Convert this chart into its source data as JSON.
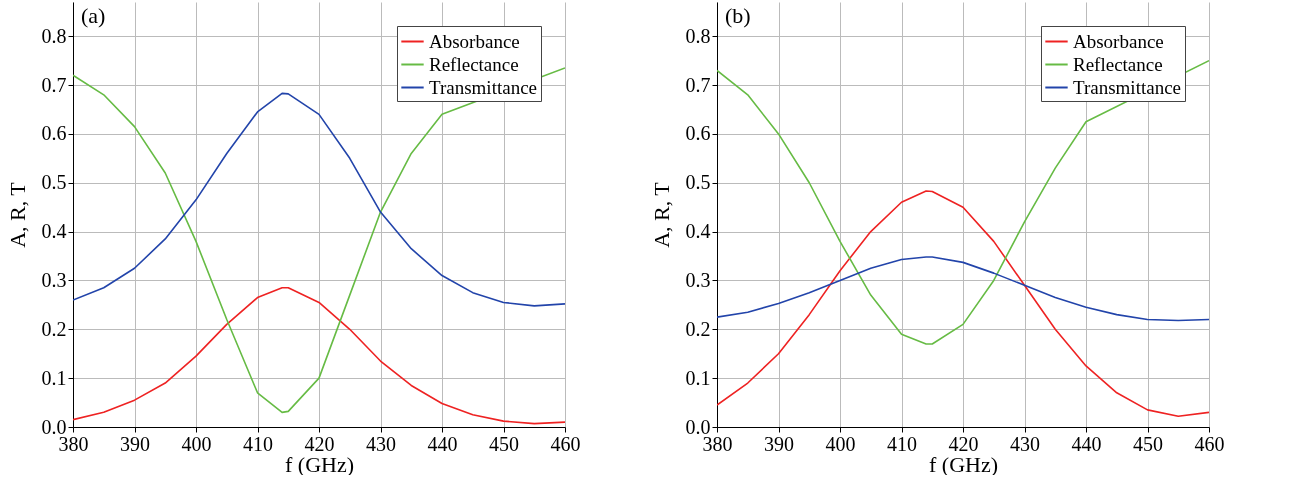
{
  "chart_data": [
    {
      "type": "line",
      "annotations": [
        "(a)"
      ],
      "xlabel": "f (GHz)",
      "ylabel": "A, R, T",
      "x": [
        380,
        385,
        390,
        395,
        400,
        405,
        410,
        414,
        415,
        420,
        425,
        430,
        435,
        440,
        445,
        450,
        455,
        460
      ],
      "xlim": [
        380,
        460
      ],
      "xticks": [
        380,
        390,
        400,
        410,
        420,
        430,
        440,
        450,
        460
      ],
      "ylim": [
        0,
        0.87
      ],
      "yticks": [
        {
          "value": 0,
          "label": "0.0"
        },
        0.1,
        0.2,
        0.3,
        0.4,
        0.5,
        0.6,
        0.7,
        0.8
      ],
      "grid": true,
      "legend": "top right",
      "series": [
        {
          "name": "Absorbance",
          "color": "#ee2222",
          "values": [
            0.015,
            0.03,
            0.055,
            0.09,
            0.145,
            0.21,
            0.265,
            0.285,
            0.285,
            0.255,
            0.2,
            0.135,
            0.085,
            0.048,
            0.025,
            0.012,
            0.007,
            0.01
          ]
        },
        {
          "name": "Reflectance",
          "color": "#66bb44",
          "values": [
            0.72,
            0.68,
            0.615,
            0.52,
            0.38,
            0.22,
            0.07,
            0.03,
            0.032,
            0.1,
            0.27,
            0.44,
            0.56,
            0.64,
            null,
            null,
            null,
            0.735
          ]
        },
        {
          "name": "Transmittance",
          "color": "#2244aa",
          "values": [
            0.26,
            0.285,
            0.325,
            0.385,
            0.465,
            0.56,
            0.645,
            0.683,
            0.682,
            0.64,
            0.55,
            0.44,
            0.365,
            0.31,
            0.275,
            0.255,
            0.248,
            0.252
          ]
        }
      ]
    },
    {
      "type": "line",
      "annotations": [
        "(b)"
      ],
      "xlabel": "f (GHz)",
      "ylabel": "A, R, T",
      "x": [
        380,
        385,
        390,
        395,
        400,
        405,
        410,
        414,
        415,
        420,
        425,
        430,
        435,
        440,
        445,
        450,
        455,
        460
      ],
      "xlim": [
        380,
        460
      ],
      "xticks": [
        380,
        390,
        400,
        410,
        420,
        430,
        440,
        450,
        460
      ],
      "ylim": [
        0,
        0.87
      ],
      "yticks": [
        {
          "value": 0,
          "label": "0.0"
        },
        0.1,
        0.2,
        0.3,
        0.4,
        0.5,
        0.6,
        0.7,
        0.8
      ],
      "grid": true,
      "legend": "top right",
      "series": [
        {
          "name": "Absorbance",
          "color": "#ee2222",
          "values": [
            0.045,
            0.09,
            0.15,
            0.23,
            0.32,
            0.4,
            0.46,
            0.483,
            0.482,
            0.45,
            0.38,
            0.29,
            0.2,
            0.125,
            0.07,
            0.035,
            0.022,
            0.03
          ]
        },
        {
          "name": "Reflectance",
          "color": "#66bb44",
          "values": [
            0.73,
            0.68,
            0.6,
            0.5,
            0.38,
            0.27,
            0.19,
            0.17,
            0.17,
            0.21,
            0.3,
            0.42,
            0.53,
            0.625,
            null,
            null,
            null,
            0.75
          ]
        },
        {
          "name": "Transmittance",
          "color": "#2244aa",
          "values": [
            0.225,
            0.235,
            0.253,
            0.275,
            0.3,
            0.325,
            0.343,
            0.348,
            0.348,
            0.337,
            0.315,
            0.29,
            0.265,
            0.245,
            0.23,
            0.22,
            0.218,
            0.22
          ]
        }
      ]
    }
  ]
}
